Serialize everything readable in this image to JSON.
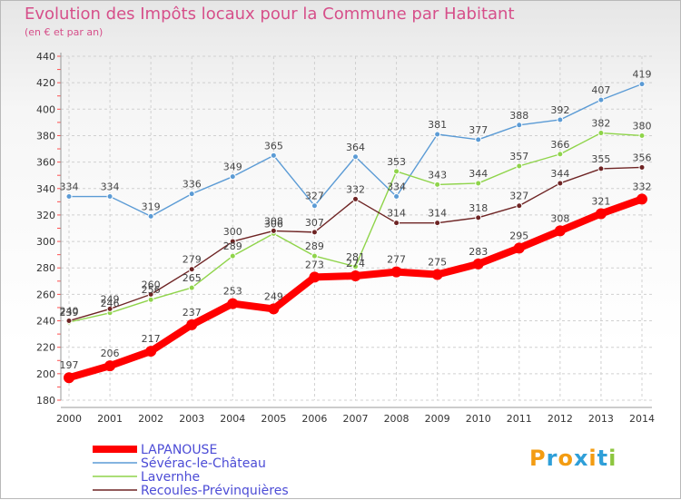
{
  "chart_data": {
    "type": "line",
    "title": "Evolution des Impôts locaux pour la Commune par Habitant",
    "subtitle": "(en € et par an)",
    "xlabel": "",
    "ylabel": "",
    "ylim": [
      180,
      440
    ],
    "yticks": [
      "180",
      "200",
      "220",
      "240",
      "260",
      "280",
      "300",
      "320",
      "340",
      "360",
      "380",
      "400",
      "420",
      "440"
    ],
    "categories": [
      "2000",
      "2001",
      "2002",
      "2003",
      "2004",
      "2005",
      "2006",
      "2007",
      "2008",
      "2009",
      "2010",
      "2011",
      "2012",
      "2013",
      "2014"
    ],
    "grid": true,
    "legend_position": "bottom-left",
    "series": [
      {
        "name": "Sévérac-le-Château",
        "color": "#5b9bd5",
        "values": [
          334,
          334,
          319,
          336,
          349,
          365,
          327,
          364,
          334,
          381,
          377,
          388,
          392,
          407,
          419
        ],
        "labels": [
          "334",
          "334",
          "319",
          "336",
          "349",
          "365",
          "327",
          "364",
          "334",
          "381",
          "377",
          "388",
          "392",
          "407",
          "419"
        ]
      },
      {
        "name": "Lavernhe",
        "color": "#8fd44a",
        "values": [
          239,
          246,
          256,
          265,
          289,
          306,
          289,
          281,
          353,
          343,
          344,
          357,
          366,
          382,
          380
        ],
        "labels": [
          "239",
          "246",
          "256",
          "265",
          "289",
          "306",
          "289",
          "281",
          "353",
          "343",
          "344",
          "357",
          "366",
          "382",
          "380"
        ]
      },
      {
        "name": "Recoules-Prévinquières",
        "color": "#6e2424",
        "values": [
          240,
          249,
          260,
          279,
          300,
          308,
          307,
          332,
          314,
          314,
          318,
          327,
          344,
          355,
          356
        ],
        "labels": [
          "240",
          "249",
          "260",
          "279",
          "300",
          "308",
          "307",
          "332",
          "314",
          "314",
          "318",
          "327",
          "344",
          "355",
          "356"
        ]
      },
      {
        "name": "LAPANOUSE",
        "color": "#ff0000",
        "values": [
          197,
          206,
          217,
          237,
          253,
          249,
          273,
          274,
          277,
          275,
          283,
          295,
          308,
          321,
          332
        ],
        "labels": [
          "197",
          "206",
          "217",
          "237",
          "253",
          "249",
          "273",
          "274",
          "277",
          "275",
          "283",
          "295",
          "308",
          "321",
          "332"
        ]
      }
    ],
    "legend": [
      "LAPANOUSE",
      "Sévérac-le-Château",
      "Lavernhe",
      "Recoules-Prévinquières"
    ]
  },
  "logo": {
    "text": "Proxiti",
    "colors": [
      "#f39c12",
      "#2f9fd8",
      "#f39c12",
      "#2f9fd8",
      "#f39c12",
      "#2f9fd8",
      "#8dc63f"
    ]
  }
}
